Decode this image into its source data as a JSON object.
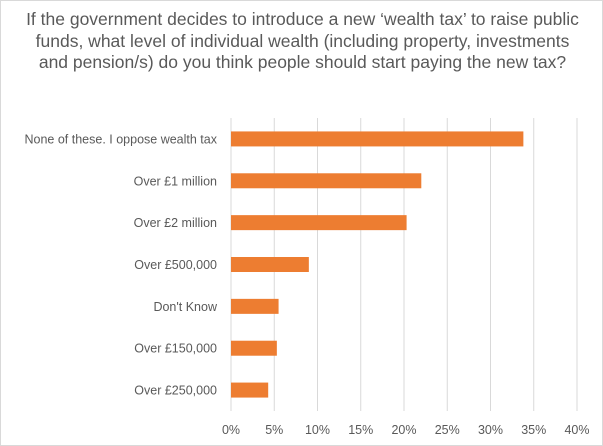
{
  "chart_data": {
    "type": "bar",
    "orientation": "horizontal",
    "title": "If the government decides to introduce a new ‘wealth tax’ to raise public funds, what level of individual wealth (including property, investments and pension/s) do you think people should start paying the new tax?",
    "categories": [
      "None of these. I oppose wealth tax",
      "Over £1 million",
      "Over £2 million",
      "Over £500,000",
      "Don't Know",
      "Over £150,000",
      "Over £250,000"
    ],
    "values": [
      33.8,
      22.0,
      20.3,
      9.0,
      5.5,
      5.3,
      4.3
    ],
    "xlim": [
      0,
      40
    ],
    "xticks": [
      0,
      5,
      10,
      15,
      20,
      25,
      30,
      35,
      40
    ],
    "xtick_labels": [
      "0%",
      "5%",
      "10%",
      "15%",
      "20%",
      "25%",
      "30%",
      "35%",
      "40%"
    ],
    "xlabel": "",
    "ylabel": "",
    "grid": true,
    "legend": "none",
    "bar_color": "#ed7d31",
    "grid_color": "#d9d9d9"
  }
}
